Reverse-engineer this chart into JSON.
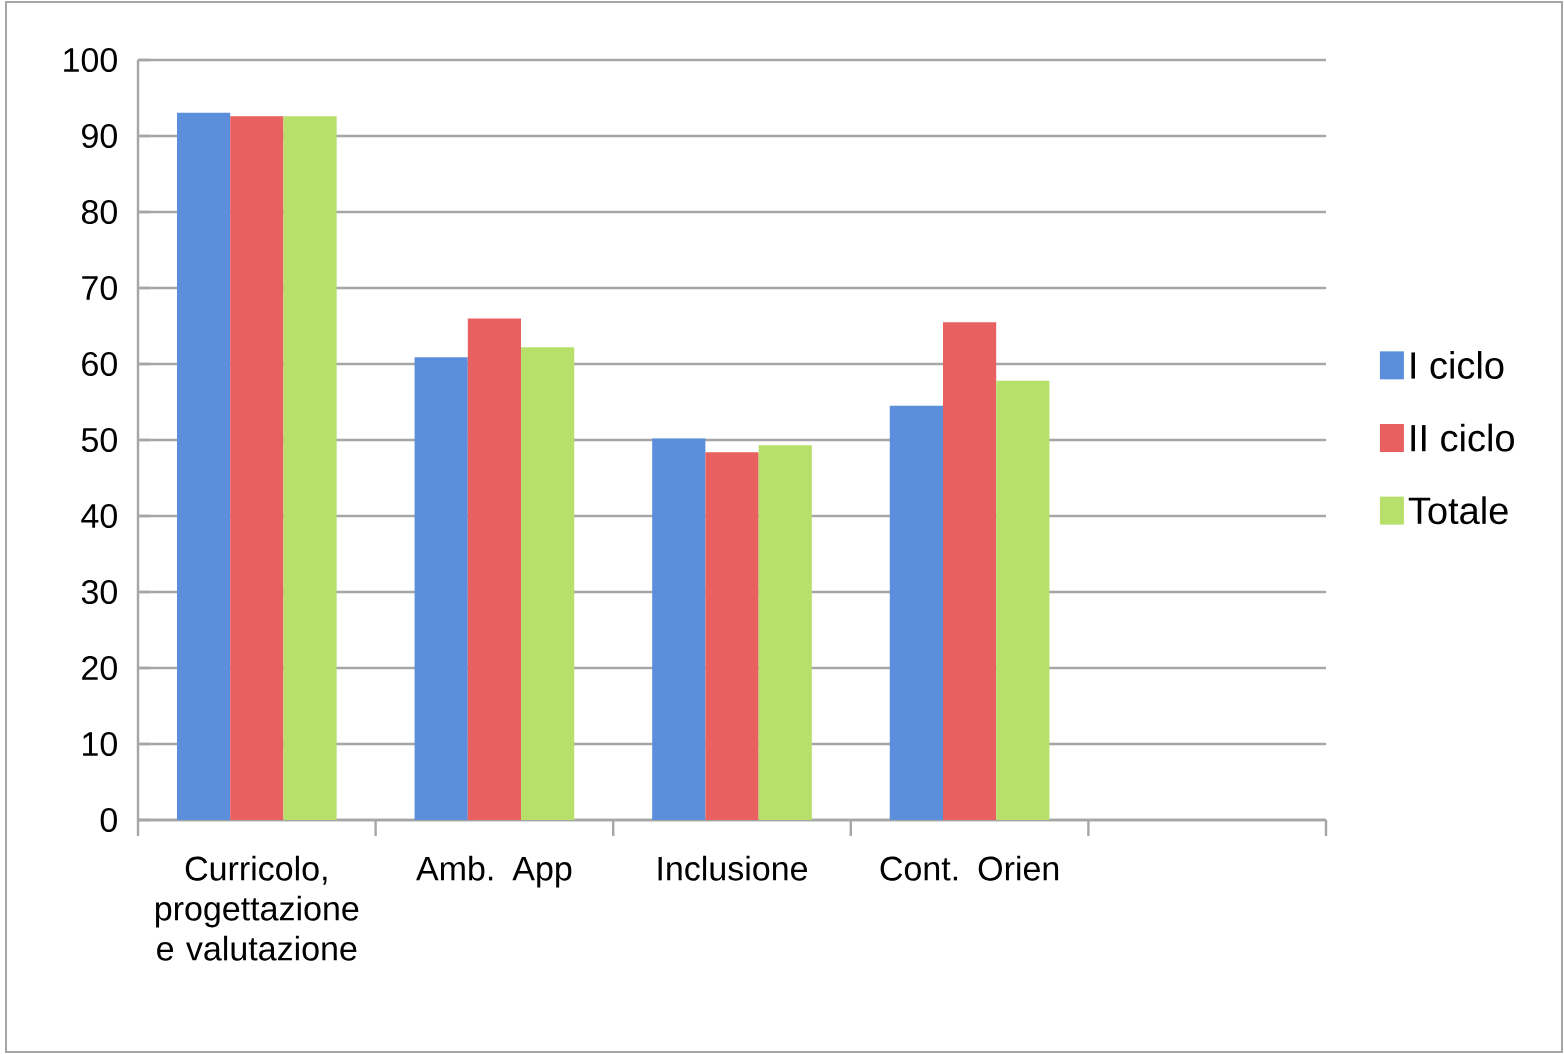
{
  "chart_data": {
    "type": "bar",
    "categories": [
      "Curricolo, progettazione e valutazione",
      "Amb. App",
      "Inclusione",
      "Cont. Orien",
      null
    ],
    "series": [
      {
        "name": "I ciclo",
        "color": "#5b8fdc",
        "values": [
          93.1,
          60.9,
          50.2,
          54.5,
          null
        ]
      },
      {
        "name": "II ciclo",
        "color": "#e8605f",
        "values": [
          92.6,
          66,
          48.4,
          65.5,
          null
        ]
      },
      {
        "name": "Totale",
        "color": "#b6e06a",
        "values": [
          92.6,
          62.2,
          49.3,
          57.8,
          null
        ]
      }
    ],
    "ylim": [
      0,
      100
    ],
    "yticks": [
      0,
      10,
      20,
      30,
      40,
      50,
      60,
      70,
      80,
      90,
      100
    ],
    "grid": "y",
    "legend": "right"
  }
}
